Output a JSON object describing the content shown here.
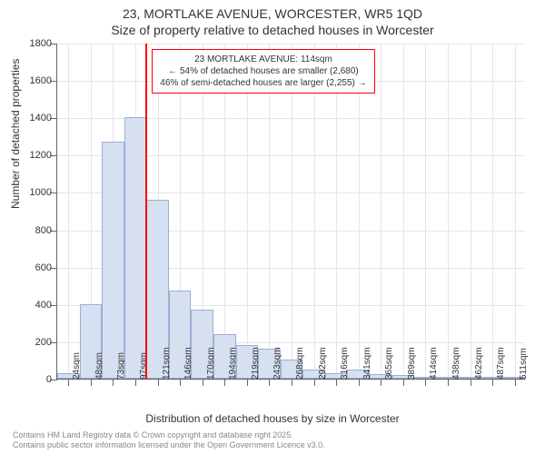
{
  "title": {
    "line1": "23, MORTLAKE AVENUE, WORCESTER, WR5 1QD",
    "line2": "Size of property relative to detached houses in Worcester"
  },
  "chart": {
    "type": "histogram",
    "xlabel": "Distribution of detached houses by size in Worcester",
    "ylabel": "Number of detached properties",
    "y": {
      "min": 0,
      "max": 1800,
      "ticks": [
        0,
        200,
        400,
        600,
        800,
        1000,
        1200,
        1400,
        1600,
        1800
      ]
    },
    "x": {
      "labels": [
        "24sqm",
        "48sqm",
        "73sqm",
        "97sqm",
        "121sqm",
        "146sqm",
        "170sqm",
        "194sqm",
        "219sqm",
        "243sqm",
        "268sqm",
        "292sqm",
        "316sqm",
        "341sqm",
        "365sqm",
        "389sqm",
        "414sqm",
        "438sqm",
        "462sqm",
        "487sqm",
        "511sqm"
      ]
    },
    "bars": {
      "values": [
        30,
        400,
        1270,
        1400,
        960,
        470,
        370,
        240,
        180,
        160,
        100,
        50,
        30,
        50,
        25,
        18,
        12,
        5,
        5,
        3,
        2
      ],
      "fill": "#d6e0f0",
      "stroke": "#9bb0d6",
      "width_ratio": 1.0
    },
    "grid_color": "#e5e5e5",
    "axis_color": "#666666",
    "background": "#ffffff",
    "reference": {
      "bin_index": 3,
      "color": "#ff0000",
      "width": 2
    },
    "annotation": {
      "line1": "23 MORTLAKE AVENUE: 114sqm",
      "line2": "← 54% of detached houses are smaller (2,680)",
      "line3": "46% of semi-detached houses are larger (2,255) →",
      "border_color": "#ff0000",
      "font_size": 10
    }
  },
  "footer": {
    "line1": "Contains HM Land Registry data © Crown copyright and database right 2025.",
    "line2": "Contains public sector information licensed under the Open Government Licence v3.0."
  }
}
